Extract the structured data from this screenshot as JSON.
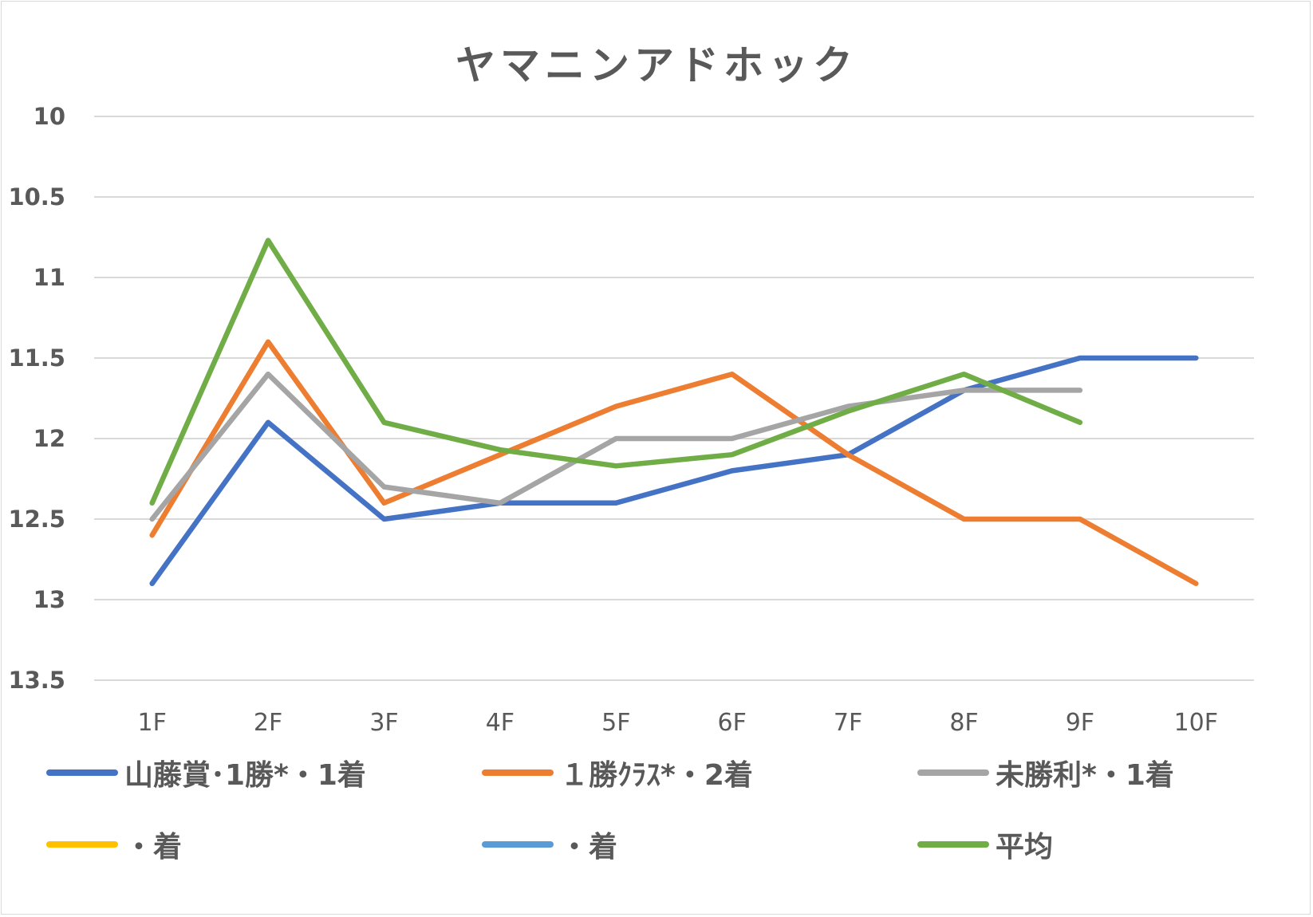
{
  "chart_data": {
    "type": "line",
    "title": "ヤマニンアドホック",
    "categories": [
      "1F",
      "2F",
      "3F",
      "4F",
      "5F",
      "6F",
      "7F",
      "8F",
      "9F",
      "10F"
    ],
    "y_ticks": [
      "10",
      "10.5",
      "11",
      "11.5",
      "12",
      "12.5",
      "13",
      "13.5"
    ],
    "ylim": [
      10,
      13.5
    ],
    "y_reversed": true,
    "grid": true,
    "legend_position": "bottom",
    "series": [
      {
        "name": "山藤賞･1勝*・1着",
        "color": "#4472C4",
        "values": [
          12.9,
          11.9,
          12.5,
          12.4,
          12.4,
          12.2,
          12.1,
          11.7,
          11.5,
          11.5
        ]
      },
      {
        "name": "１勝ｸﾗｽ*・2着",
        "color": "#ED7D31",
        "values": [
          12.6,
          11.4,
          12.4,
          12.1,
          11.8,
          11.6,
          12.1,
          12.5,
          12.5,
          12.9
        ]
      },
      {
        "name": "未勝利*・1着",
        "color": "#A5A5A5",
        "values": [
          12.5,
          11.6,
          12.3,
          12.4,
          12.0,
          12.0,
          11.8,
          11.7,
          11.7,
          null
        ]
      },
      {
        "name": "・着",
        "color": "#FFC000",
        "values": [
          null,
          null,
          null,
          null,
          null,
          null,
          null,
          null,
          null,
          null
        ]
      },
      {
        "name": "・着",
        "color": "#5B9BD5",
        "values": [
          null,
          null,
          null,
          null,
          null,
          null,
          null,
          null,
          null,
          null
        ]
      },
      {
        "name": "平均",
        "color": "#70AD47",
        "values": [
          12.4,
          10.77,
          11.9,
          12.07,
          12.17,
          12.1,
          11.83,
          11.6,
          11.9,
          null
        ]
      }
    ]
  }
}
